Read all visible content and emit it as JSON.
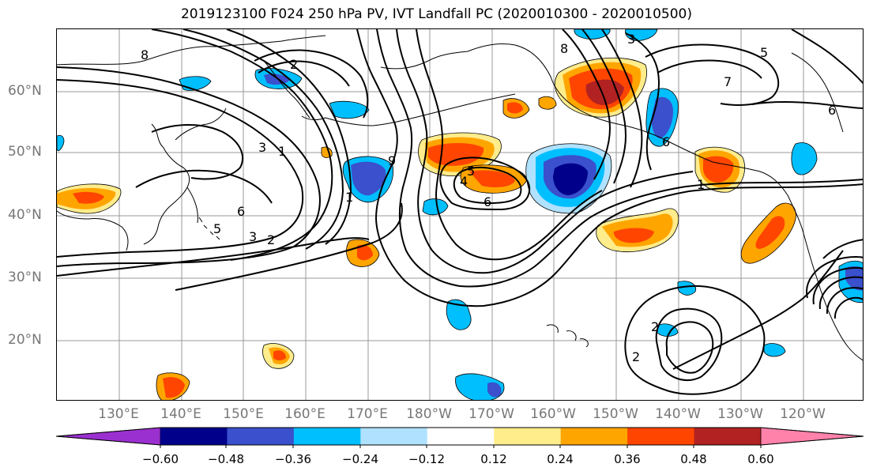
{
  "title": "2019123100 F024 250 hPa PV, IVT Landfall PC (2020010300 - 2020010500)",
  "map": {
    "lat_labels": [
      "60°N",
      "50°N",
      "40°N",
      "30°N",
      "20°N"
    ],
    "lon_labels": [
      "130°E",
      "140°E",
      "150°E",
      "160°E",
      "170°E",
      "180°W",
      "170°W",
      "160°W",
      "150°W",
      "140°W",
      "130°W",
      "120°W"
    ],
    "contour_labels": [
      "8",
      "2",
      "3",
      "1",
      "5",
      "6",
      "3",
      "2",
      "1",
      "5",
      "4",
      "6",
      "9",
      "8",
      "3",
      "7",
      "6",
      "6",
      "1",
      "5",
      "2",
      "2"
    ]
  },
  "colorbar": {
    "colors": [
      "#9b30d0",
      "#00008b",
      "#3a50cc",
      "#00bfff",
      "#b0e2ff",
      "#ffffff",
      "#ffec8b",
      "#ffa500",
      "#ff4500",
      "#b22222",
      "#ff82ab"
    ],
    "tick_labels": [
      "−0.60",
      "−0.48",
      "−0.36",
      "−0.24",
      "−0.12",
      "0.12",
      "0.24",
      "0.36",
      "0.48",
      "0.60"
    ]
  }
}
